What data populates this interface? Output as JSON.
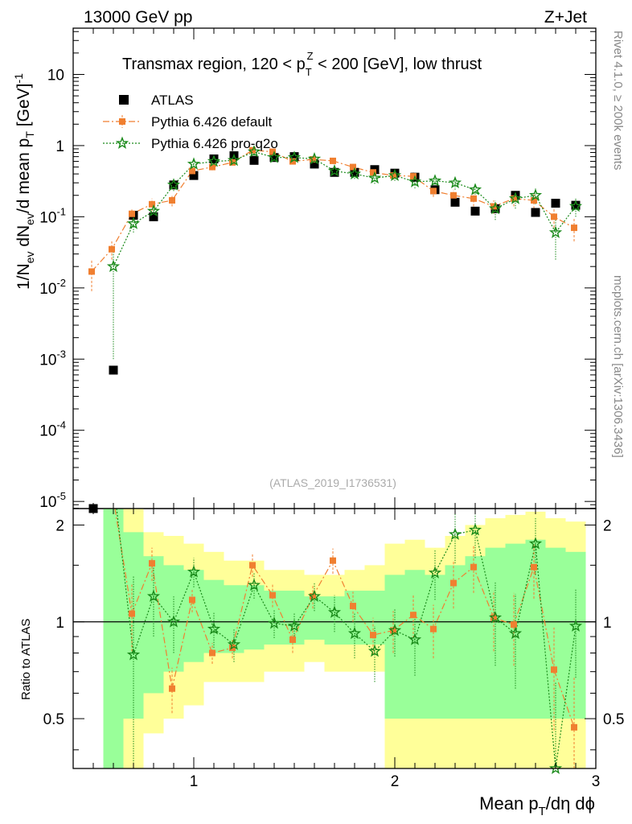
{
  "header": {
    "left_label": "13000 GeV pp",
    "right_label": "Z+Jet"
  },
  "side_labels": {
    "rivet": "Rivet 4.1.0, ≥ 200k events",
    "mcplots": "mcplots.cern.ch [arXiv:1306.3436]"
  },
  "watermark": "(ATLAS_2019_I1736531)",
  "colors": {
    "atlas": "#000000",
    "default": "#f07f30",
    "proq2o": "#1a8a1a",
    "band_outer": "#ffff99",
    "band_inner": "#99ff99"
  },
  "legend": [
    {
      "name": "ATLAS",
      "key": "atlas"
    },
    {
      "name": "Pythia 6.426 default",
      "key": "default"
    },
    {
      "name": "Pythia 6.426 pro-q2o",
      "key": "proq2o"
    }
  ],
  "chart_data": {
    "type": "scatter",
    "title_parts": {
      "a": "Transmax region, 120 < p",
      "sup": "Z",
      "sub": "T",
      "b": " < 200 [GeV], low thrust"
    },
    "xlabel": {
      "a": "Mean p",
      "sub": "T",
      "b": "/dη dϕ"
    },
    "ylabel": {
      "a": "1/N",
      "sub1": "ev",
      "b": " dN",
      "sub2": "ev",
      "c": "/d mean p",
      "sub3": "T",
      "d": " [GeV]",
      "sup": "-1"
    },
    "ratio_ylabel": "Ratio to ATLAS",
    "xlim": [
      0.4,
      3.0
    ],
    "ylim_log": [
      -5.1,
      1.65
    ],
    "ratio_ylim": [
      0.35,
      2.25
    ],
    "x_ticks": [
      {
        "v": 1,
        "l": "1"
      },
      {
        "v": 2,
        "l": "2"
      },
      {
        "v": 3,
        "l": "3"
      }
    ],
    "y_ticks": [
      {
        "e": -5,
        "b": "10",
        "s": "-5"
      },
      {
        "e": -4,
        "b": "10",
        "s": "-4"
      },
      {
        "e": -3,
        "b": "10",
        "s": "-3"
      },
      {
        "e": -2,
        "b": "10",
        "s": "-2"
      },
      {
        "e": -1,
        "b": "10",
        "s": "-1"
      },
      {
        "e": 0,
        "b": "1",
        "s": ""
      },
      {
        "e": 1,
        "b": "10",
        "s": ""
      }
    ],
    "ratio_ticks": [
      {
        "v": 0.5,
        "l": "0.5"
      },
      {
        "v": 1,
        "l": "1"
      },
      {
        "v": 2,
        "l": "2"
      }
    ],
    "x": [
      0.5,
      0.6,
      0.7,
      0.8,
      0.9,
      1.0,
      1.1,
      1.2,
      1.3,
      1.4,
      1.5,
      1.6,
      1.7,
      1.8,
      1.9,
      2.0,
      2.1,
      2.2,
      2.3,
      2.4,
      2.5,
      2.6,
      2.7,
      2.8,
      2.9
    ],
    "series": [
      {
        "name": "ATLAS",
        "values": [
          7.5e-06,
          0.0007,
          0.105,
          0.1,
          0.28,
          0.38,
          0.65,
          0.72,
          0.62,
          0.68,
          0.7,
          0.55,
          0.42,
          0.42,
          0.46,
          0.41,
          0.36,
          0.24,
          0.16,
          0.12,
          0.13,
          0.2,
          0.115,
          0.155,
          0.145
        ],
        "errors": [
          0,
          0,
          0.01,
          0.01,
          0.02,
          0.02,
          0.03,
          0.03,
          0.03,
          0.03,
          0.03,
          0.03,
          0.02,
          0.02,
          0.02,
          0.02,
          0.02,
          0.02,
          0.01,
          0.01,
          0.01,
          0.01,
          0.01,
          0.01,
          0.01
        ]
      },
      {
        "name": "Pythia 6.426 default",
        "values": [
          0.017,
          0.035,
          0.11,
          0.15,
          0.17,
          0.44,
          0.5,
          0.58,
          0.86,
          0.82,
          0.6,
          0.64,
          0.61,
          0.5,
          0.42,
          0.38,
          0.37,
          0.23,
          0.2,
          0.18,
          0.14,
          0.18,
          0.17,
          0.1,
          0.07
        ],
        "errors": [
          0.008,
          0.01,
          0.02,
          0.03,
          0.03,
          0.04,
          0.05,
          0.05,
          0.06,
          0.05,
          0.05,
          0.05,
          0.05,
          0.05,
          0.05,
          0.05,
          0.05,
          0.04,
          0.04,
          0.04,
          0.03,
          0.04,
          0.04,
          0.03,
          0.025
        ]
      },
      {
        "name": "Pythia 6.426 pro-q2o",
        "values": [
          null,
          0.02,
          0.08,
          0.12,
          0.28,
          0.55,
          0.6,
          0.62,
          0.82,
          0.68,
          0.68,
          0.65,
          0.44,
          0.4,
          0.35,
          0.38,
          0.31,
          0.32,
          0.3,
          0.24,
          0.13,
          0.18,
          0.2,
          0.06,
          0.14
        ],
        "errors": [
          0,
          0.019,
          0.02,
          0.03,
          0.05,
          0.08,
          0.08,
          0.08,
          0.1,
          0.08,
          0.08,
          0.08,
          0.06,
          0.06,
          0.06,
          0.06,
          0.06,
          0.06,
          0.06,
          0.05,
          0.04,
          0.05,
          0.05,
          0.035,
          0.04
        ]
      }
    ],
    "ratio_series": [
      {
        "name": "Pythia 6.426 default",
        "values": [
          null,
          null,
          1.06,
          1.52,
          0.62,
          1.17,
          0.8,
          0.83,
          1.5,
          1.21,
          0.88,
          1.2,
          1.55,
          1.12,
          0.91,
          0.94,
          1.05,
          0.95,
          1.32,
          1.48,
          1.03,
          0.98,
          1.48,
          0.71,
          0.47
        ],
        "errors": [
          0,
          0,
          0.25,
          0.18,
          0.1,
          0.1,
          0.06,
          0.06,
          0.12,
          0.1,
          0.08,
          0.1,
          0.14,
          0.12,
          0.12,
          0.14,
          0.16,
          0.18,
          0.22,
          0.25,
          0.22,
          0.25,
          0.3,
          0.25,
          0.2
        ]
      },
      {
        "name": "Pythia 6.426 pro-q2o",
        "values": [
          null,
          null,
          0.79,
          1.2,
          1.0,
          1.43,
          0.95,
          0.85,
          1.3,
          0.99,
          0.97,
          1.2,
          1.07,
          0.92,
          0.81,
          0.94,
          0.88,
          1.42,
          1.87,
          1.93,
          1.03,
          0.92,
          1.75,
          0.35,
          0.97
        ],
        "errors": [
          0,
          0,
          0.6,
          0.3,
          0.2,
          0.15,
          0.12,
          0.1,
          0.12,
          0.1,
          0.1,
          0.12,
          0.14,
          0.15,
          0.16,
          0.16,
          0.2,
          0.25,
          0.35,
          0.35,
          0.3,
          0.3,
          0.35,
          0.3,
          0.3
        ]
      }
    ],
    "uncertainty_bands": {
      "x_edges": [
        0.45,
        0.55,
        0.65,
        0.75,
        0.85,
        0.95,
        1.05,
        1.15,
        1.25,
        1.35,
        1.45,
        1.55,
        1.65,
        1.75,
        1.85,
        1.95,
        2.05,
        2.15,
        2.25,
        2.35,
        2.45,
        2.55,
        2.65,
        2.75,
        2.85,
        2.95
      ],
      "outer_low": [
        null,
        0.35,
        0.35,
        0.45,
        0.5,
        0.55,
        0.65,
        0.65,
        0.65,
        0.7,
        0.7,
        0.75,
        0.7,
        0.7,
        0.7,
        0.35,
        0.35,
        0.35,
        0.35,
        0.35,
        0.35,
        0.35,
        0.35,
        0.35,
        0.35
      ],
      "outer_high": [
        null,
        2.25,
        2.25,
        1.9,
        1.85,
        1.75,
        1.65,
        1.55,
        1.55,
        1.45,
        1.45,
        1.4,
        1.4,
        1.45,
        1.5,
        1.75,
        1.8,
        1.7,
        1.85,
        2.0,
        2.1,
        2.15,
        2.2,
        2.1,
        2.05
      ],
      "inner_low": [
        null,
        0.35,
        0.5,
        0.6,
        0.7,
        0.75,
        0.8,
        0.8,
        0.82,
        0.85,
        0.85,
        0.88,
        0.85,
        0.85,
        0.85,
        0.5,
        0.5,
        0.5,
        0.5,
        0.5,
        0.5,
        0.5,
        0.5,
        0.5,
        0.5
      ],
      "inner_high": [
        null,
        2.25,
        1.9,
        1.6,
        1.5,
        1.45,
        1.35,
        1.3,
        1.3,
        1.25,
        1.25,
        1.2,
        1.2,
        1.25,
        1.25,
        1.4,
        1.45,
        1.4,
        1.5,
        1.6,
        1.7,
        1.75,
        1.8,
        1.7,
        1.65
      ]
    }
  }
}
